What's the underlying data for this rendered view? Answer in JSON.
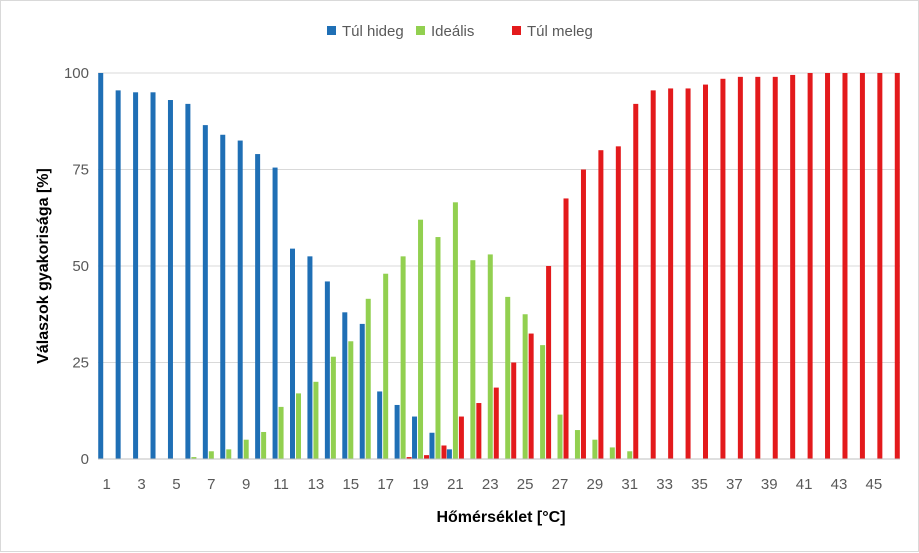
{
  "chart_data": {
    "type": "bar",
    "title": "",
    "xlabel": "Hőmérséklet [°C]",
    "ylabel": "Válaszok gyakorisága [%]",
    "ylim": [
      0,
      100
    ],
    "yticks": [
      0,
      25,
      50,
      75,
      100
    ],
    "x": [
      1,
      2,
      3,
      4,
      5,
      6,
      7,
      8,
      9,
      10,
      11,
      12,
      13,
      14,
      15,
      16,
      17,
      18,
      19,
      20,
      21,
      22,
      23,
      24,
      25,
      26,
      27,
      28,
      29,
      30,
      31,
      32,
      33,
      34,
      35,
      36,
      37,
      38,
      39,
      40,
      41,
      42,
      43,
      44,
      45,
      46
    ],
    "xtick_labels": [
      "1",
      "3",
      "5",
      "7",
      "9",
      "11",
      "13",
      "15",
      "17",
      "19",
      "21",
      "23",
      "25",
      "27",
      "29",
      "31",
      "33",
      "35",
      "37",
      "39",
      "41",
      "43",
      "45"
    ],
    "grid": true,
    "legend_position": "top",
    "series": [
      {
        "name": "Túl hideg",
        "color": "#1f6fb5",
        "values": [
          100,
          95.5,
          95,
          95,
          93,
          92,
          86.5,
          84,
          82.5,
          79,
          75.5,
          54.5,
          52.5,
          46,
          38,
          35,
          17.5,
          14,
          11,
          6.8,
          2.5,
          0,
          0,
          0,
          0,
          0,
          0,
          0,
          0,
          0,
          0,
          0,
          0,
          0,
          0,
          0,
          0,
          0,
          0,
          0,
          0,
          0,
          0,
          0,
          0,
          0
        ]
      },
      {
        "name": "Ideális",
        "color": "#92d050",
        "values": [
          0,
          0,
          0,
          0,
          0,
          0.5,
          2,
          2.5,
          5,
          7,
          13.5,
          17,
          20,
          26.5,
          30.5,
          41.5,
          48,
          52.5,
          62,
          57.5,
          66.5,
          51.5,
          53,
          42,
          37.5,
          29.5,
          11.5,
          7.5,
          5,
          3,
          2,
          0,
          0,
          0,
          0,
          0,
          0,
          0,
          0,
          0,
          0,
          0,
          0,
          0,
          0,
          0
        ]
      },
      {
        "name": "Túl meleg",
        "color": "#e31a1c",
        "values": [
          0,
          0,
          0,
          0,
          0,
          0,
          0,
          0,
          0,
          0,
          0,
          0,
          0,
          0,
          0,
          0,
          0,
          0.5,
          1,
          3.5,
          11,
          14.5,
          18.5,
          25,
          32.5,
          50,
          67.5,
          75,
          80,
          81,
          92,
          95.5,
          96,
          96,
          97,
          98.5,
          99,
          99,
          99,
          99.5,
          100,
          100,
          100,
          100,
          100,
          100
        ]
      }
    ]
  }
}
